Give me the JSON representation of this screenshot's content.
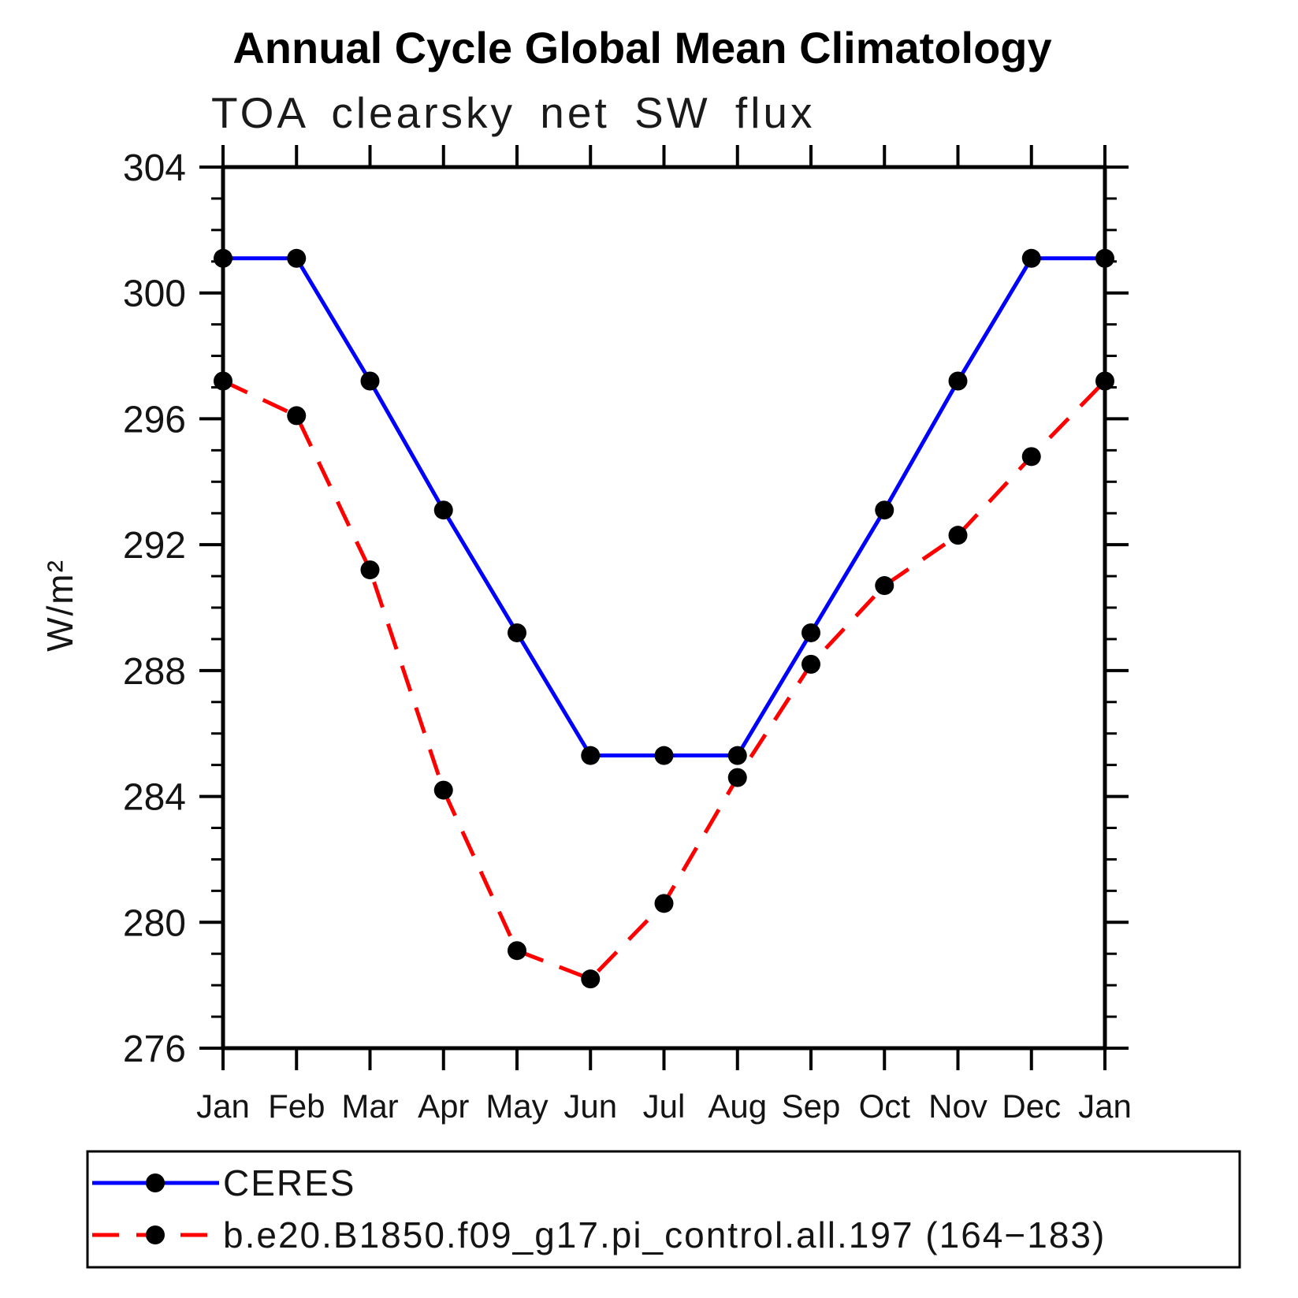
{
  "chart_data": {
    "type": "line",
    "title": "Annual Cycle Global Mean Climatology",
    "subtitle": "TOA clearsky net SW flux",
    "ylabel": "W/m²",
    "categories": [
      "Jan",
      "Feb",
      "Mar",
      "Apr",
      "May",
      "Jun",
      "Jul",
      "Aug",
      "Sep",
      "Oct",
      "Nov",
      "Dec",
      "Jan"
    ],
    "series": [
      {
        "name": "CERES",
        "color": "#0000ff",
        "line_style": "solid",
        "marker": "filled-circle",
        "values": [
          301.1,
          301.1,
          297.2,
          293.1,
          289.2,
          285.3,
          285.3,
          285.3,
          289.2,
          293.1,
          297.2,
          301.1,
          301.1
        ]
      },
      {
        "name": "b.e20.B1850.f09_g17.pi_control.all.197 (164−183)",
        "color": "#ff0000",
        "line_style": "dashed",
        "marker": "filled-circle",
        "values": [
          297.2,
          296.1,
          291.2,
          284.2,
          279.1,
          278.2,
          280.6,
          284.6,
          288.2,
          290.7,
          292.3,
          294.8,
          297.2
        ]
      }
    ],
    "ylim": [
      276,
      304
    ],
    "ytick_step": 4,
    "yminor_step": 1,
    "ytick_labels": [
      "276",
      "280",
      "284",
      "288",
      "292",
      "296",
      "300",
      "304"
    ],
    "grid": "off",
    "legend_position": "bottom",
    "axis_color": "#000000",
    "marker_color": "#000000"
  }
}
